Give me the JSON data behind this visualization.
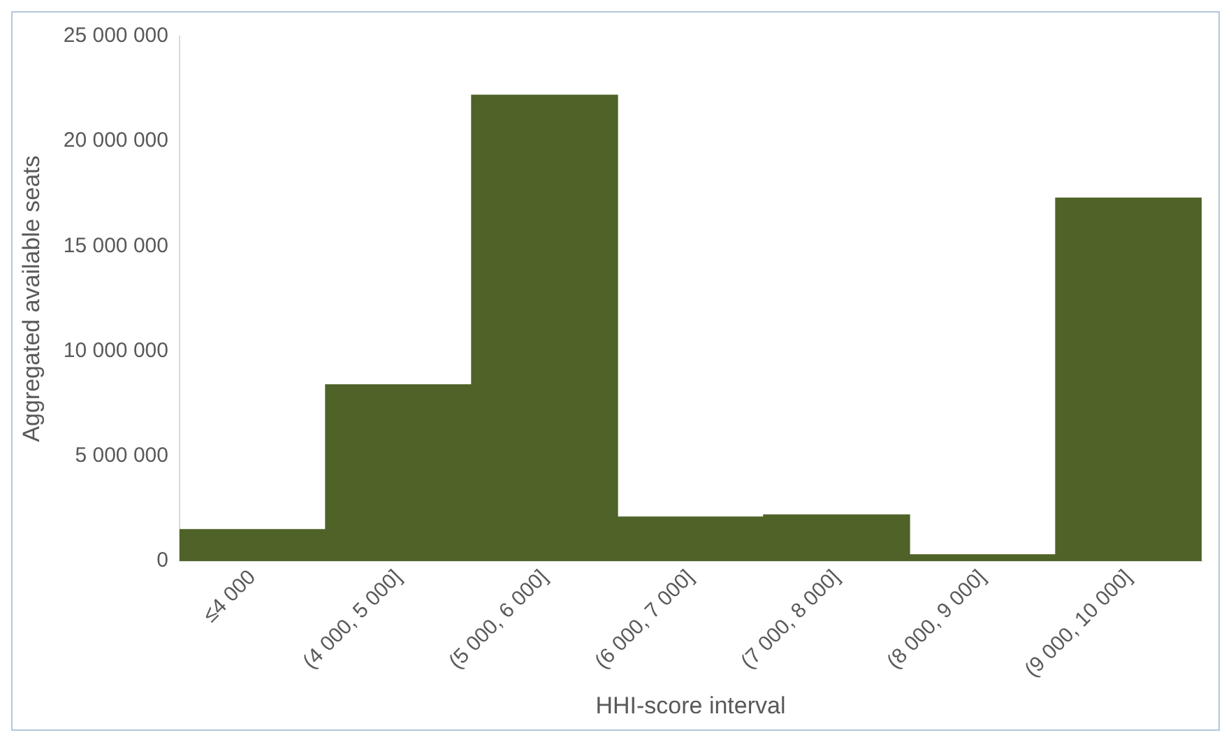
{
  "chart_data": {
    "type": "bar",
    "xlabel": "HHI-score interval",
    "ylabel": "Aggregated available seats",
    "categories": [
      "≤4 000",
      "(4 000, 5 000]",
      "(5 000, 6 000]",
      "(6 000, 7 000]",
      "(7 000, 8 000]",
      "(8 000, 9 000]",
      "(9 000, 10 000]"
    ],
    "values": [
      1500000,
      8400000,
      22200000,
      2100000,
      2200000,
      300000,
      17300000
    ],
    "color": "#4f6228",
    "ylim": [
      0,
      25000000
    ],
    "yticks": [
      {
        "value": 0,
        "label": "0"
      },
      {
        "value": 5000000,
        "label": "5 000 000"
      },
      {
        "value": 10000000,
        "label": "10 000 000"
      },
      {
        "value": 15000000,
        "label": "15 000 000"
      },
      {
        "value": 20000000,
        "label": "20 000 000"
      },
      {
        "value": 25000000,
        "label": "25 000 000"
      }
    ],
    "grid": false,
    "legend": false
  }
}
